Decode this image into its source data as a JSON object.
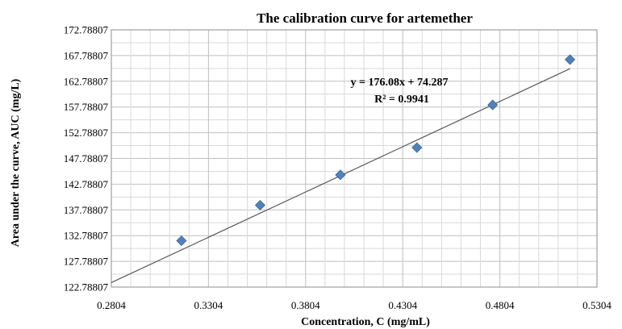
{
  "chart_data": {
    "type": "scatter",
    "title": "The calibration curve for artemether",
    "xlabel": "Concentration, C (mg/mL)",
    "ylabel": "Area under the curve, AUC (mg/L)",
    "xlim": [
      0.2804,
      0.5304
    ],
    "ylim": [
      122.78807,
      172.78807
    ],
    "x_ticks": [
      "0.2804",
      "0.3304",
      "0.3804",
      "0.4304",
      "0.4804",
      "0.5304"
    ],
    "y_ticks": [
      "122.78807",
      "127.78807",
      "132.78807",
      "137.78807",
      "142.78807",
      "147.78807",
      "152.78807",
      "157.78807",
      "162.78807",
      "167.78807",
      "172.78807"
    ],
    "grid": true,
    "series": [
      {
        "x": [
          0.3165,
          0.357,
          0.3983,
          0.4377,
          0.4767,
          0.5165
        ],
        "y": [
          131.8,
          138.7,
          144.6,
          149.9,
          158.2,
          167.0
        ],
        "marker": "diamond",
        "color": "#4F81BD"
      }
    ],
    "trendline": {
      "equation": "y = 176.08x + 74.287",
      "r_squared": "R² = 0.9941",
      "slope": 176.08,
      "intercept": 74.287,
      "x_range": [
        0.2804,
        0.5165
      ],
      "color": "#595959"
    }
  }
}
